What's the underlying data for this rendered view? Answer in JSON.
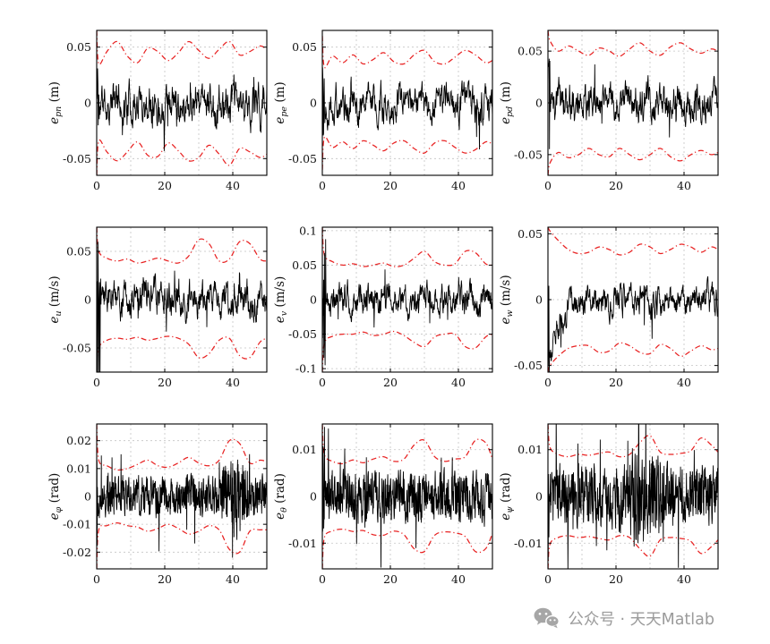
{
  "watermark": {
    "text": "公众号 · 天天Matlab"
  },
  "colors": {
    "signal": "#000000",
    "bound": "#e82222",
    "grid": "#c4c4c4",
    "background": "#ffffff"
  },
  "chart_data": [
    {
      "type": "line",
      "name": "e-pn",
      "ylabel": {
        "var": "e",
        "sub": "pn",
        "unit": "(m)"
      },
      "xlim": [
        0,
        50
      ],
      "ylim": [
        -0.065,
        0.065
      ],
      "xticks": [
        0,
        20,
        40
      ],
      "yticks": [
        0.05,
        0,
        -0.05
      ],
      "xgrid": [
        10,
        20,
        30,
        40
      ],
      "bound_x": [
        0,
        0.6,
        3,
        6,
        9,
        12,
        15,
        18,
        21,
        24,
        27,
        30,
        33,
        36,
        39,
        42,
        45,
        48,
        50
      ],
      "upper": [
        0.065,
        0.035,
        0.046,
        0.055,
        0.042,
        0.036,
        0.049,
        0.046,
        0.038,
        0.045,
        0.055,
        0.047,
        0.04,
        0.048,
        0.055,
        0.043,
        0.046,
        0.051,
        0.048
      ],
      "lower": [
        -0.065,
        -0.034,
        -0.044,
        -0.052,
        -0.044,
        -0.035,
        -0.047,
        -0.048,
        -0.036,
        -0.043,
        -0.052,
        -0.049,
        -0.038,
        -0.046,
        -0.056,
        -0.041,
        -0.044,
        -0.049,
        -0.046
      ],
      "signal": {
        "seed": 11,
        "n": 550,
        "smooth": 0.72,
        "std": 0.012,
        "spike_prob": 0.02,
        "spike_mult": 2.5,
        "transient": {
          "until": 0.7,
          "amp": 0.045
        }
      }
    },
    {
      "type": "line",
      "name": "e-pe",
      "ylabel": {
        "var": "e",
        "sub": "pe",
        "unit": "(m)"
      },
      "xlim": [
        0,
        50
      ],
      "ylim": [
        -0.065,
        0.065
      ],
      "xticks": [
        0,
        20,
        40
      ],
      "yticks": [
        0.05,
        0,
        -0.05
      ],
      "xgrid": [
        10,
        20,
        30,
        40
      ],
      "bound_x": [
        0,
        0.6,
        3,
        6,
        9,
        12,
        15,
        18,
        21,
        24,
        27,
        30,
        33,
        36,
        39,
        42,
        45,
        48,
        50
      ],
      "upper": [
        0.06,
        0.032,
        0.042,
        0.036,
        0.043,
        0.035,
        0.039,
        0.045,
        0.037,
        0.035,
        0.043,
        0.047,
        0.037,
        0.035,
        0.041,
        0.047,
        0.043,
        0.036,
        0.038
      ],
      "lower": [
        -0.06,
        -0.031,
        -0.04,
        -0.035,
        -0.041,
        -0.034,
        -0.038,
        -0.043,
        -0.036,
        -0.034,
        -0.041,
        -0.045,
        -0.036,
        -0.034,
        -0.04,
        -0.045,
        -0.042,
        -0.035,
        -0.037
      ],
      "signal": {
        "seed": 22,
        "n": 550,
        "smooth": 0.72,
        "std": 0.011,
        "spike_prob": 0.02,
        "spike_mult": 2.5,
        "transient": {
          "until": 0.7,
          "amp": 0.04
        }
      }
    },
    {
      "type": "line",
      "name": "e-pd",
      "ylabel": {
        "var": "e",
        "sub": "pd",
        "unit": "(m)"
      },
      "xlim": [
        0,
        50
      ],
      "ylim": [
        -0.07,
        0.07
      ],
      "xticks": [
        0,
        20,
        40
      ],
      "yticks": [
        0.05,
        0,
        -0.05
      ],
      "xgrid": [
        10,
        20,
        30,
        40
      ],
      "bound_x": [
        0,
        0.6,
        3,
        6,
        9,
        12,
        15,
        18,
        21,
        24,
        27,
        30,
        33,
        36,
        39,
        42,
        45,
        48,
        50
      ],
      "upper": [
        0.07,
        0.06,
        0.05,
        0.055,
        0.05,
        0.046,
        0.053,
        0.05,
        0.045,
        0.052,
        0.058,
        0.05,
        0.046,
        0.054,
        0.058,
        0.052,
        0.048,
        0.052,
        0.05
      ],
      "lower": [
        -0.07,
        -0.058,
        -0.048,
        -0.053,
        -0.05,
        -0.044,
        -0.05,
        -0.052,
        -0.044,
        -0.05,
        -0.055,
        -0.05,
        -0.044,
        -0.052,
        -0.056,
        -0.05,
        -0.046,
        -0.05,
        -0.048
      ],
      "signal": {
        "seed": 33,
        "n": 550,
        "smooth": 0.72,
        "std": 0.012,
        "spike_prob": 0.02,
        "spike_mult": 2.5,
        "transient": {
          "until": 0.7,
          "amp": 0.06
        }
      }
    },
    {
      "type": "line",
      "name": "e-u",
      "ylabel": {
        "var": "e",
        "sub": "u",
        "unit": "(m/s)"
      },
      "xlim": [
        0,
        50
      ],
      "ylim": [
        -0.075,
        0.075
      ],
      "xticks": [
        0,
        20,
        40
      ],
      "yticks": [
        0.05,
        0,
        -0.05
      ],
      "xgrid": [
        10,
        20,
        30,
        40
      ],
      "bound_x": [
        0,
        0.6,
        3,
        6,
        9,
        12,
        15,
        18,
        21,
        24,
        27,
        30,
        33,
        36,
        39,
        42,
        45,
        48,
        50
      ],
      "upper": [
        0.075,
        0.05,
        0.043,
        0.04,
        0.042,
        0.038,
        0.04,
        0.043,
        0.04,
        0.038,
        0.045,
        0.062,
        0.058,
        0.04,
        0.042,
        0.06,
        0.058,
        0.042,
        0.04
      ],
      "lower": [
        -0.075,
        -0.05,
        -0.042,
        -0.04,
        -0.041,
        -0.039,
        -0.042,
        -0.04,
        -0.038,
        -0.04,
        -0.046,
        -0.06,
        -0.056,
        -0.042,
        -0.04,
        -0.058,
        -0.06,
        -0.044,
        -0.04
      ],
      "signal": {
        "seed": 44,
        "n": 560,
        "smooth": 0.7,
        "std": 0.013,
        "spike_prob": 0.02,
        "spike_mult": 2.5,
        "transient": {
          "until": 1.2,
          "amp": 0.09
        }
      }
    },
    {
      "type": "line",
      "name": "e-v",
      "ylabel": {
        "var": "e",
        "sub": "v",
        "unit": "(m/s)"
      },
      "xlim": [
        0,
        50
      ],
      "ylim": [
        -0.105,
        0.105
      ],
      "xticks": [
        0,
        20,
        40
      ],
      "yticks": [
        0.1,
        0.05,
        0,
        -0.05,
        -0.1
      ],
      "xgrid": [
        10,
        20,
        30,
        40
      ],
      "bound_x": [
        0,
        0.6,
        3,
        6,
        9,
        12,
        15,
        18,
        21,
        24,
        27,
        30,
        33,
        36,
        39,
        42,
        45,
        48,
        50
      ],
      "upper": [
        0.105,
        0.065,
        0.055,
        0.05,
        0.052,
        0.048,
        0.05,
        0.053,
        0.048,
        0.05,
        0.06,
        0.07,
        0.055,
        0.05,
        0.052,
        0.07,
        0.068,
        0.052,
        0.05
      ],
      "lower": [
        -0.105,
        -0.063,
        -0.053,
        -0.05,
        -0.05,
        -0.047,
        -0.052,
        -0.05,
        -0.046,
        -0.052,
        -0.062,
        -0.068,
        -0.054,
        -0.05,
        -0.05,
        -0.068,
        -0.07,
        -0.054,
        -0.05
      ],
      "signal": {
        "seed": 55,
        "n": 560,
        "smooth": 0.72,
        "std": 0.015,
        "spike_prob": 0.025,
        "spike_mult": 2.8,
        "transient": {
          "until": 1.0,
          "amp": 0.1
        }
      }
    },
    {
      "type": "line",
      "name": "e-w",
      "ylabel": {
        "var": "e",
        "sub": "w",
        "unit": "(m/s)"
      },
      "xlim": [
        0,
        50
      ],
      "ylim": [
        -0.055,
        0.055
      ],
      "xticks": [
        0,
        20,
        40
      ],
      "yticks": [
        0.05,
        0,
        -0.05
      ],
      "xgrid": [
        10,
        20,
        30,
        40
      ],
      "bound_x": [
        0,
        0.6,
        3,
        6,
        9,
        12,
        15,
        18,
        21,
        24,
        27,
        30,
        33,
        36,
        39,
        42,
        45,
        48,
        50
      ],
      "upper": [
        0.055,
        0.052,
        0.045,
        0.038,
        0.035,
        0.036,
        0.04,
        0.038,
        0.034,
        0.036,
        0.042,
        0.04,
        0.035,
        0.038,
        0.042,
        0.04,
        0.036,
        0.04,
        0.038
      ],
      "lower": [
        -0.055,
        -0.05,
        -0.043,
        -0.037,
        -0.035,
        -0.035,
        -0.04,
        -0.039,
        -0.033,
        -0.035,
        -0.04,
        -0.041,
        -0.034,
        -0.037,
        -0.043,
        -0.039,
        -0.035,
        -0.038,
        -0.037
      ],
      "signal": {
        "seed": 66,
        "n": 550,
        "smooth": 0.7,
        "std": 0.008,
        "spike_prob": 0.02,
        "spike_mult": 2.5,
        "decay": {
          "amp": -0.05,
          "tau": 2.8
        },
        "transient": {
          "until": 0.35,
          "amp": 0.055
        }
      }
    },
    {
      "type": "line",
      "name": "e-phi",
      "ylabel": {
        "var": "e",
        "sub": "φ",
        "unit": "(rad)"
      },
      "xlim": [
        0,
        50
      ],
      "ylim": [
        -0.026,
        0.026
      ],
      "xticks": [
        0,
        20,
        40
      ],
      "yticks": [
        0.02,
        0.01,
        0,
        -0.01,
        -0.02
      ],
      "xgrid": [
        10,
        20,
        30,
        40
      ],
      "bound_x": [
        0,
        0.6,
        3,
        6,
        9,
        12,
        15,
        18,
        21,
        24,
        27,
        30,
        33,
        36,
        39,
        42,
        45,
        48,
        50
      ],
      "upper": [
        0.026,
        0.013,
        0.011,
        0.0095,
        0.01,
        0.0115,
        0.013,
        0.011,
        0.0105,
        0.012,
        0.014,
        0.012,
        0.011,
        0.013,
        0.02,
        0.019,
        0.012,
        0.013,
        0.0125
      ],
      "lower": [
        -0.026,
        -0.012,
        -0.0105,
        -0.0095,
        -0.0105,
        -0.011,
        -0.0125,
        -0.0115,
        -0.01,
        -0.0115,
        -0.0135,
        -0.0125,
        -0.0105,
        -0.012,
        -0.019,
        -0.02,
        -0.0125,
        -0.012,
        -0.012
      ],
      "signal": {
        "seed": 77,
        "n": 700,
        "smooth": 0.35,
        "std": 0.006,
        "spike_prob": 0.03,
        "spike_mult": 3,
        "burst": {
          "from": 36,
          "to": 45,
          "mult": 2.0
        },
        "transient": {
          "until": 0.3,
          "amp": 0.02
        }
      }
    },
    {
      "type": "line",
      "name": "e-theta",
      "ylabel": {
        "var": "e",
        "sub": "θ",
        "unit": "(rad)"
      },
      "xlim": [
        0,
        50
      ],
      "ylim": [
        -0.0155,
        0.0155
      ],
      "xticks": [
        0,
        20,
        40
      ],
      "yticks": [
        0.01,
        0,
        -0.01
      ],
      "xgrid": [
        10,
        20,
        30,
        40
      ],
      "bound_x": [
        0,
        0.6,
        3,
        6,
        9,
        12,
        15,
        18,
        21,
        24,
        27,
        30,
        33,
        36,
        39,
        42,
        45,
        48,
        50
      ],
      "upper": [
        0.0155,
        0.009,
        0.0075,
        0.007,
        0.0078,
        0.0072,
        0.008,
        0.0085,
        0.0075,
        0.008,
        0.011,
        0.012,
        0.0085,
        0.0075,
        0.008,
        0.0085,
        0.012,
        0.0115,
        0.008
      ],
      "lower": [
        -0.0155,
        -0.0088,
        -0.0074,
        -0.007,
        -0.0075,
        -0.0073,
        -0.0082,
        -0.0083,
        -0.0074,
        -0.0082,
        -0.0112,
        -0.0118,
        -0.0083,
        -0.0076,
        -0.0078,
        -0.0086,
        -0.0118,
        -0.0112,
        -0.0079
      ],
      "signal": {
        "seed": 88,
        "n": 700,
        "smooth": 0.35,
        "std": 0.0045,
        "spike_prob": 0.03,
        "spike_mult": 3,
        "transient": {
          "until": 0.3,
          "amp": 0.012
        }
      }
    },
    {
      "type": "line",
      "name": "e-psi",
      "ylabel": {
        "var": "e",
        "sub": "ψ",
        "unit": "(rad)"
      },
      "xlim": [
        0,
        50
      ],
      "ylim": [
        -0.0155,
        0.0155
      ],
      "xticks": [
        0,
        20,
        40
      ],
      "yticks": [
        0.01,
        0,
        -0.01
      ],
      "xgrid": [
        10,
        20,
        30,
        40
      ],
      "bound_x": [
        0,
        0.6,
        3,
        6,
        9,
        12,
        15,
        18,
        21,
        24,
        27,
        30,
        33,
        36,
        39,
        42,
        45,
        48,
        50
      ],
      "upper": [
        0.0155,
        0.0105,
        0.009,
        0.0085,
        0.009,
        0.0088,
        0.0092,
        0.0095,
        0.0085,
        0.009,
        0.0115,
        0.013,
        0.0095,
        0.009,
        0.0092,
        0.0098,
        0.0125,
        0.011,
        0.0095
      ],
      "lower": [
        -0.0155,
        -0.0102,
        -0.0088,
        -0.0084,
        -0.0088,
        -0.0086,
        -0.009,
        -0.0093,
        -0.0084,
        -0.0088,
        -0.0112,
        -0.0128,
        -0.0093,
        -0.0088,
        -0.009,
        -0.0096,
        -0.0122,
        -0.0108,
        -0.0093
      ],
      "signal": {
        "seed": 99,
        "n": 700,
        "smooth": 0.35,
        "std": 0.0055,
        "spike_prob": 0.03,
        "spike_mult": 3,
        "burst": {
          "from": 24,
          "to": 34,
          "mult": 1.6
        },
        "transient": {
          "until": 0.3,
          "amp": 0.014
        }
      }
    }
  ]
}
